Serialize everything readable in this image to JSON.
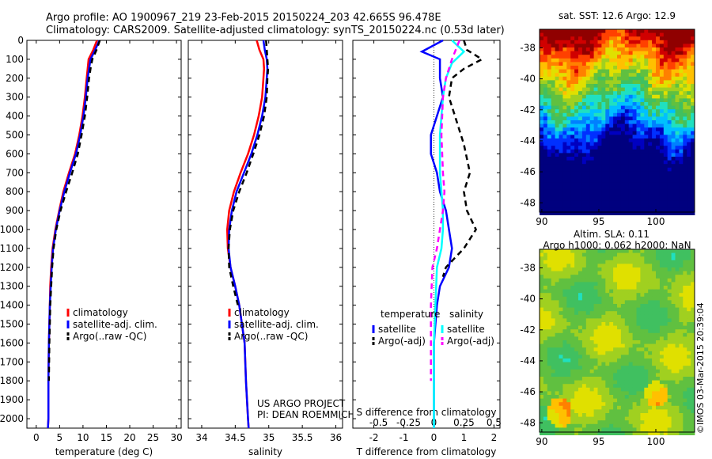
{
  "header": {
    "line1": "Argo profile: AO 1900967_219 23-Feb-2015 20150224_203 42.665S 96.478E",
    "line2": "Climatology: CARS2009. Satellite-adjusted climatology: synTS_20150224.nc (0.53d later)"
  },
  "colors": {
    "climatology": "#ff0000",
    "satellite": "#0000ff",
    "argo": "#000000",
    "sal_satellite": "#00ffff",
    "sal_argo": "#ff00ff"
  },
  "chart_data": [
    {
      "type": "line",
      "id": "temperature",
      "xlabel": "temperature (deg C)",
      "ylabel": "",
      "xlim": [
        -2,
        31
      ],
      "ylim": [
        2050,
        0
      ],
      "xticks": [
        0,
        5,
        10,
        15,
        20,
        25,
        30
      ],
      "yticks": [
        0,
        100,
        200,
        300,
        400,
        500,
        600,
        700,
        800,
        900,
        1000,
        1100,
        1200,
        1300,
        1400,
        1500,
        1600,
        1700,
        1800,
        1900,
        2000
      ],
      "legend": [
        "climatology",
        "satellite-adj. clim.",
        "Argo(..raw -QC)"
      ],
      "legend_position": "bottom-right",
      "series": [
        {
          "name": "climatology",
          "style": "solid",
          "color": "#ff0000",
          "x": [
            13.0,
            12.2,
            11.2,
            11.0,
            10.8,
            10.4,
            9.9,
            9.2,
            8.3,
            7.0,
            5.8,
            4.9,
            4.1,
            3.5,
            3.2,
            3.0,
            2.9,
            2.8,
            2.7,
            2.6,
            2.6,
            2.5
          ],
          "y": [
            0,
            50,
            100,
            150,
            200,
            300,
            400,
            500,
            600,
            700,
            800,
            900,
            1000,
            1100,
            1200,
            1300,
            1400,
            1500,
            1600,
            1800,
            2000,
            2050
          ]
        },
        {
          "name": "satellite-adj. clim.",
          "style": "solid",
          "color": "#0000ff",
          "x": [
            13.5,
            12.6,
            11.6,
            11.3,
            11.0,
            10.6,
            10.1,
            9.4,
            8.5,
            7.2,
            6.0,
            5.0,
            4.2,
            3.6,
            3.3,
            3.1,
            2.9,
            2.8,
            2.7,
            2.6,
            2.6,
            2.5
          ],
          "y": [
            0,
            50,
            100,
            150,
            200,
            300,
            400,
            500,
            600,
            700,
            800,
            900,
            1000,
            1100,
            1200,
            1300,
            1400,
            1500,
            1600,
            1800,
            2000,
            2050
          ]
        },
        {
          "name": "Argo(..raw -QC)",
          "style": "dashed",
          "color": "#000000",
          "x": [
            13.6,
            12.9,
            12.0,
            11.6,
            11.3,
            10.9,
            10.4,
            9.7,
            8.9,
            7.7,
            6.4,
            5.2,
            4.3,
            3.7,
            3.4,
            3.2,
            3.0,
            2.9,
            2.8,
            2.7
          ],
          "y": [
            0,
            50,
            100,
            150,
            200,
            300,
            400,
            500,
            600,
            700,
            800,
            900,
            1000,
            1100,
            1200,
            1300,
            1400,
            1500,
            1600,
            1800
          ]
        }
      ]
    },
    {
      "type": "line",
      "id": "salinity",
      "xlabel": "salinity",
      "ylabel": "",
      "xlim": [
        33.8,
        36.1
      ],
      "ylim": [
        2050,
        0
      ],
      "xticks": [
        34,
        34.5,
        35,
        35.5,
        36
      ],
      "legend": [
        "climatology",
        "satellite-adj. clim.",
        "Argo(..raw -QC)"
      ],
      "legend_position": "bottom-right",
      "annotation": [
        "US ARGO PROJECT",
        "PI: DEAN ROEMMICH"
      ],
      "series": [
        {
          "name": "climatology",
          "style": "solid",
          "color": "#ff0000",
          "x": [
            34.82,
            34.86,
            34.92,
            34.93,
            34.92,
            34.9,
            34.85,
            34.78,
            34.69,
            34.58,
            34.48,
            34.41,
            34.38,
            34.39,
            34.43,
            34.5,
            34.56,
            34.6,
            34.64,
            34.66,
            34.69,
            34.7
          ],
          "y": [
            0,
            50,
            100,
            150,
            200,
            300,
            400,
            500,
            600,
            700,
            800,
            900,
            1000,
            1100,
            1200,
            1300,
            1400,
            1500,
            1600,
            1800,
            2000,
            2050
          ]
        },
        {
          "name": "satellite-adj. clim.",
          "style": "solid",
          "color": "#0000ff",
          "x": [
            34.92,
            34.94,
            34.97,
            34.98,
            34.97,
            34.95,
            34.9,
            34.83,
            34.74,
            34.63,
            34.52,
            34.45,
            34.41,
            34.4,
            34.43,
            34.5,
            34.56,
            34.6,
            34.64,
            34.66,
            34.69,
            34.7
          ],
          "y": [
            0,
            50,
            100,
            150,
            200,
            300,
            400,
            500,
            600,
            700,
            800,
            900,
            1000,
            1100,
            1200,
            1300,
            1400,
            1500,
            1600,
            1800,
            2000,
            2050
          ]
        },
        {
          "name": "Argo(..raw -QC)",
          "style": "dashed",
          "color": "#000000",
          "x": [
            34.96,
            34.97,
            34.98,
            34.99,
            34.98,
            34.97,
            34.93,
            34.86,
            34.77,
            34.67,
            34.56,
            34.47,
            34.42,
            34.4,
            34.41,
            34.47,
            34.54
          ],
          "y": [
            0,
            50,
            100,
            150,
            200,
            300,
            400,
            500,
            600,
            700,
            800,
            900,
            1000,
            1100,
            1200,
            1300,
            1400
          ]
        }
      ]
    },
    {
      "type": "line",
      "id": "difference",
      "xlabel": "T difference from climatology",
      "xlabel_top": "S difference from climatology",
      "ylabel": "",
      "xlim": [
        -2.7,
        2.2
      ],
      "ylim": [
        2050,
        0
      ],
      "xticks": [
        -2,
        -1,
        0,
        1,
        2
      ],
      "xticks_s": [
        "-0.5",
        "-0.25",
        "0",
        "0.25",
        "0.5"
      ],
      "legend_groups": [
        {
          "title": "temperature",
          "items": [
            "satellite",
            "Argo(-adj)"
          ]
        },
        {
          "title": "salinity",
          "items": [
            "satellite",
            "Argo(-adj)"
          ]
        }
      ],
      "series": [
        {
          "name": "temperature satellite",
          "style": "solid",
          "color": "#0000ff",
          "x": [
            0.3,
            -0.4,
            0.2,
            0.2,
            0.3,
            0.1,
            -0.1,
            -0.1,
            0.1,
            0.2,
            0.4,
            0.5,
            0.6,
            0.5,
            0.2,
            0.1,
            0.05,
            0,
            0,
            0,
            0
          ],
          "y": [
            0,
            60,
            100,
            200,
            300,
            400,
            500,
            600,
            700,
            800,
            900,
            1000,
            1100,
            1200,
            1300,
            1400,
            1500,
            1600,
            1800,
            2000,
            2050
          ]
        },
        {
          "name": "temperature Argo(-adj)",
          "style": "dashed",
          "color": "#000000",
          "x": [
            1.0,
            1.1,
            1.6,
            1.0,
            0.6,
            0.5,
            0.8,
            1.0,
            1.2,
            1.0,
            1.1,
            1.4,
            1.0,
            0.4,
            0.3
          ],
          "y": [
            0,
            50,
            100,
            150,
            200,
            300,
            450,
            550,
            700,
            800,
            900,
            1000,
            1100,
            1200,
            1250
          ]
        },
        {
          "name": "salinity satellite",
          "style": "solid",
          "color": "#00ffff",
          "x": [
            0.6,
            1.0,
            0.6,
            0.4,
            0.3,
            0.25,
            0.2,
            0.2,
            0.2,
            0.25,
            0.3,
            0.3,
            0.25,
            0.1,
            0.05,
            0,
            0,
            0,
            0
          ],
          "y": [
            0,
            60,
            120,
            200,
            300,
            400,
            500,
            600,
            700,
            800,
            900,
            1000,
            1100,
            1200,
            1400,
            1600,
            1800,
            2000,
            2050
          ]
        },
        {
          "name": "salinity Argo(-adj)",
          "style": "dashed",
          "color": "#ff00ff",
          "x": [
            0.85,
            0.6,
            0.4,
            0.3,
            0.25,
            0.3,
            0.35,
            0.3,
            0.2,
            0.1,
            -0.05,
            -0.1,
            -0.1,
            -0.1
          ],
          "y": [
            0,
            100,
            200,
            300,
            500,
            700,
            800,
            900,
            1000,
            1100,
            1200,
            1400,
            1600,
            1800
          ]
        }
      ]
    },
    {
      "type": "heatmap",
      "id": "sst",
      "title": "sat. SST: 12.6 Argo: 12.9",
      "xticks": [
        90,
        95,
        100
      ],
      "yticks": [
        -38,
        -40,
        -42,
        -44,
        -46,
        -48
      ],
      "xlim": [
        89.8,
        103.4
      ],
      "ylim": [
        -48.6,
        -36.8
      ]
    },
    {
      "type": "heatmap",
      "id": "sla",
      "title": [
        "Altim. SLA: 0.11",
        "Argo h1000: 0.062 h2000: NaN"
      ],
      "xticks": [
        90,
        95,
        100
      ],
      "yticks": [
        -38,
        -40,
        -42,
        -44,
        -46,
        -48
      ],
      "xlim": [
        89.8,
        103.4
      ],
      "ylim": [
        -48.6,
        -36.8
      ]
    }
  ],
  "footer": {
    "credit": "©IMOS 03-Mar-2015 20:39:04"
  }
}
